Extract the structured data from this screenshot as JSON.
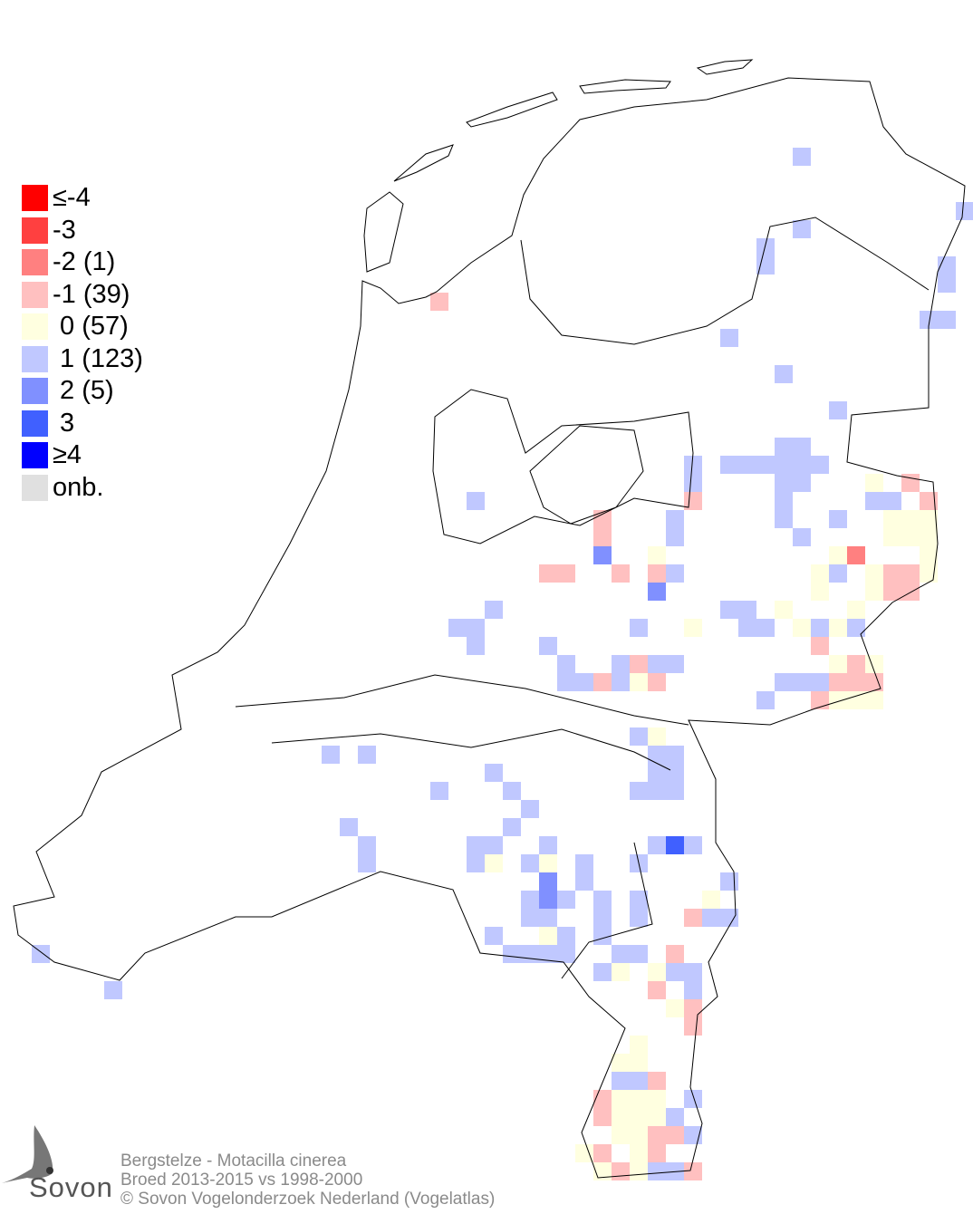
{
  "legend": {
    "items": [
      {
        "label": "≤-4",
        "color": "#ff0000"
      },
      {
        "label": "-3",
        "color": "#ff4040"
      },
      {
        "label": "-2 (1)",
        "color": "#ff8080"
      },
      {
        "label": "-1 (39)",
        "color": "#ffc0c0"
      },
      {
        "label": " 0 (57)",
        "color": "#ffffe0"
      },
      {
        "label": " 1 (123)",
        "color": "#c0c8ff"
      },
      {
        "label": " 2 (5)",
        "color": "#8090ff"
      },
      {
        "label": " 3",
        "color": "#4060ff"
      },
      {
        "label": "≥4",
        "color": "#0000ff"
      },
      {
        "label": "onb.",
        "color": "#e0e0e0"
      }
    ]
  },
  "caption": {
    "species": "Bergstelze - Motacilla cinerea",
    "period": "Broed 2013-2015 vs 1998-2000",
    "copyright": "© Sovon Vogelonderzoek Nederland (Vogelatlas)"
  },
  "logo": {
    "text": "Sovon"
  }
}
